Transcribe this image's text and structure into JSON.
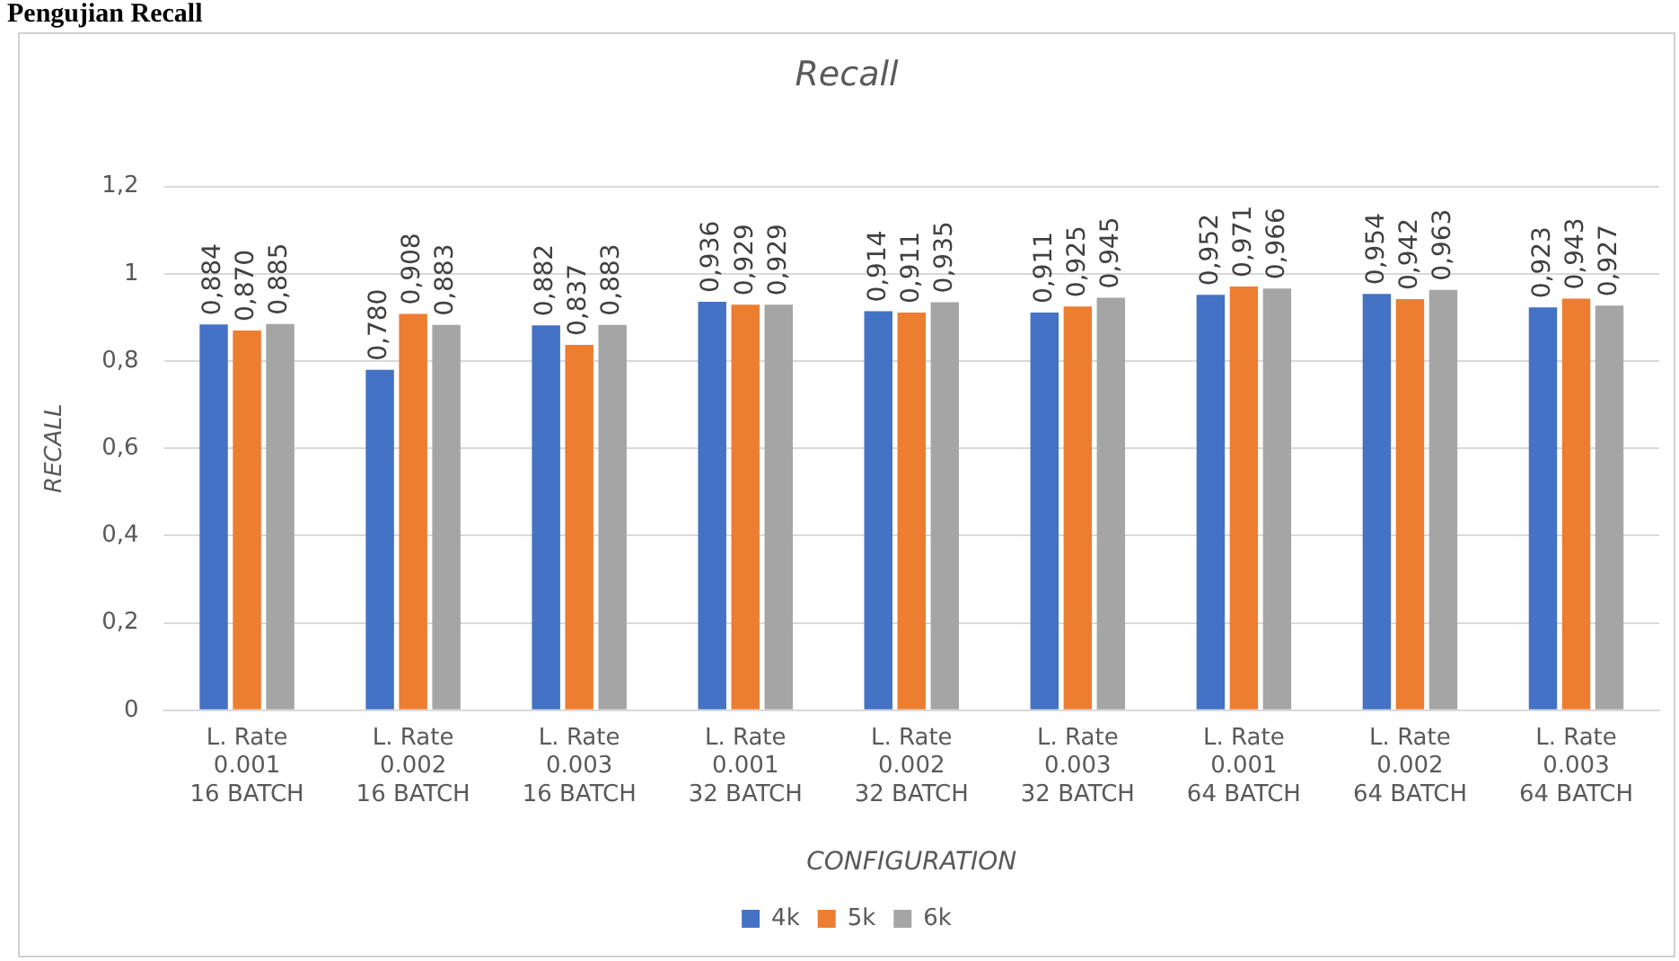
{
  "chart_data": {
    "type": "bar",
    "title": "Recall",
    "xlabel": "CONFIGURATION",
    "ylabel": "RECALL",
    "annotations": [
      "Pengujian Recall"
    ],
    "categories": [
      "L. Rate\n0.001\n16 BATCH",
      "L. Rate\n0.002\n16 BATCH",
      "L. Rate\n0.003\n16 BATCH",
      "L. Rate\n0.001\n32 BATCH",
      "L. Rate\n0.002\n32 BATCH",
      "L. Rate\n0.003\n32 BATCH",
      "L. Rate\n0.001\n64 BATCH",
      "L. Rate\n0.002\n64 BATCH",
      "L. Rate\n0.003\n64 BATCH"
    ],
    "series": [
      {
        "name": "4k",
        "color": "#4472c4",
        "values": [
          0.884,
          0.78,
          0.882,
          0.936,
          0.914,
          0.911,
          0.952,
          0.954,
          0.923
        ],
        "value_labels": [
          "0,884",
          "0,780",
          "0,882",
          "0,936",
          "0,914",
          "0,911",
          "0,952",
          "0,954",
          "0,923"
        ]
      },
      {
        "name": "5k",
        "color": "#ed7d31",
        "values": [
          0.87,
          0.908,
          0.837,
          0.929,
          0.911,
          0.925,
          0.971,
          0.942,
          0.943
        ],
        "value_labels": [
          "0,870",
          "0,908",
          "0,837",
          "0,929",
          "0,911",
          "0,925",
          "0,971",
          "0,942",
          "0,943"
        ]
      },
      {
        "name": "6k",
        "color": "#a5a5a5",
        "values": [
          0.885,
          0.883,
          0.883,
          0.929,
          0.935,
          0.945,
          0.966,
          0.963,
          0.927
        ],
        "value_labels": [
          "0,885",
          "0,883",
          "0,883",
          "0,929",
          "0,935",
          "0,945",
          "0,966",
          "0,963",
          "0,927"
        ]
      }
    ],
    "ylim": [
      0,
      1.2
    ],
    "yticks": [
      {
        "value": 0,
        "label": "0"
      },
      {
        "value": 0.2,
        "label": "0,2"
      },
      {
        "value": 0.4,
        "label": "0,4"
      },
      {
        "value": 0.6,
        "label": "0,6"
      },
      {
        "value": 0.8,
        "label": "0,8"
      },
      {
        "value": 1,
        "label": "1"
      },
      {
        "value": 1.2,
        "label": "1,2"
      }
    ],
    "grid": "y",
    "legend": "bottom"
  }
}
